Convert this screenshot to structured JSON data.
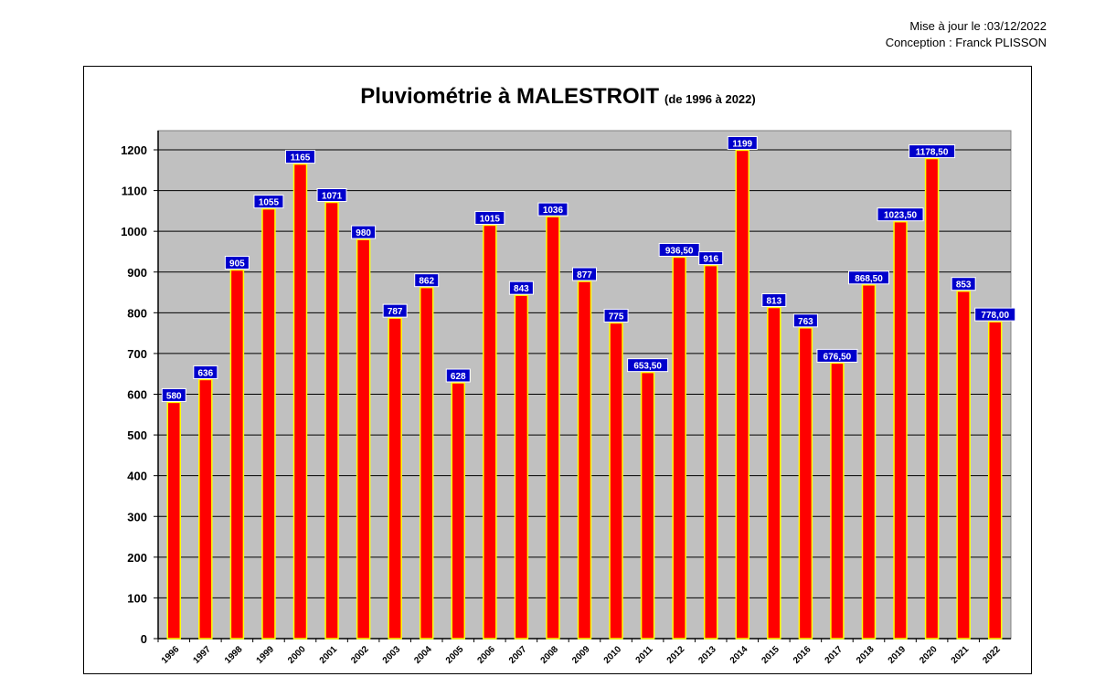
{
  "header": {
    "updated": "Mise à jour le :03/12/2022",
    "author": "Conception : Franck PLISSON"
  },
  "chart_data": {
    "type": "bar",
    "title": "Pluviométrie à MALESTROIT",
    "subtitle": "(de 1996 à 2022)",
    "xlabel": "",
    "ylabel": "",
    "ylim": [
      0,
      1200
    ],
    "yticks": [
      "0",
      "100",
      "200",
      "300",
      "400",
      "500",
      "600",
      "700",
      "800",
      "900",
      "1000",
      "1100",
      "1200"
    ],
    "grid": true,
    "legend": "none",
    "categories": [
      "1996",
      "1997",
      "1998",
      "1999",
      "2000",
      "2001",
      "2002",
      "2003",
      "2004",
      "2005",
      "2006",
      "2007",
      "2008",
      "2009",
      "2010",
      "2011",
      "2012",
      "2013",
      "2014",
      "2015",
      "2016",
      "2017",
      "2018",
      "2019",
      "2020",
      "2021",
      "2022"
    ],
    "values": [
      580,
      636,
      905,
      1055,
      1165,
      1071,
      980,
      787,
      862,
      628,
      1015,
      843,
      1036,
      877,
      775,
      653.5,
      936.5,
      916,
      1199,
      813,
      763,
      676.5,
      868.5,
      1023.5,
      1178.5,
      853,
      778
    ],
    "value_labels": [
      "580",
      "636",
      "905",
      "1055",
      "1165",
      "1071",
      "980",
      "787",
      "862",
      "628",
      "1015",
      "843",
      "1036",
      "877",
      "775",
      "653,50",
      "936,50",
      "916",
      "1199",
      "813",
      "763",
      "676,50",
      "868,50",
      "1023,50",
      "1178,50",
      "853",
      "778,00"
    ],
    "colors": {
      "plot_background": "#c0c0c0",
      "bar_fill": "#ff0000",
      "bar_border": "#ffff00",
      "label_background": "#0000cc",
      "label_text": "#ffffff",
      "gridline": "#000000"
    }
  }
}
